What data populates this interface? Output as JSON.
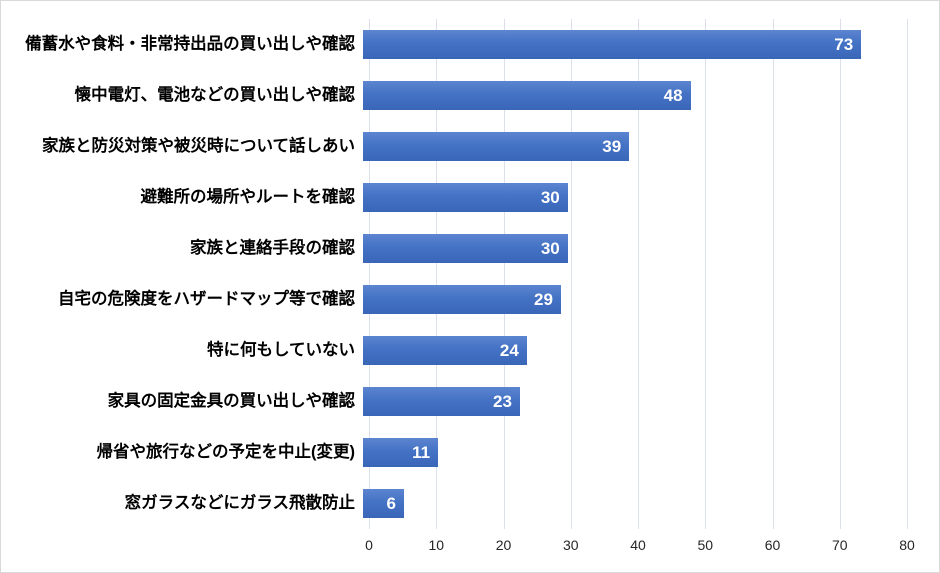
{
  "chart_data": {
    "type": "bar",
    "orientation": "horizontal",
    "title": "",
    "xlabel": "",
    "ylabel": "",
    "categories": [
      "備蓄水や食料・非常持出品の買い出しや確認",
      "懐中電灯、電池などの買い出しや確認",
      "家族と防災対策や被災時について話しあい",
      "避難所の場所やルートを確認",
      "家族と連絡手段の確認",
      "自宅の危険度をハザードマップ等で確認",
      "特に何もしていない",
      "家具の固定金具の買い出しや確認",
      "帰省や旅行などの予定を中止(変更)",
      "窓ガラスなどにガラス飛散防止"
    ],
    "values": [
      73,
      48,
      39,
      30,
      30,
      29,
      24,
      23,
      11,
      6
    ],
    "data_labels": [
      "73",
      "48",
      "39",
      "30",
      "30",
      "29",
      "24",
      "23",
      "11",
      "6"
    ],
    "data_label_position": "inside-end",
    "xlim": [
      0,
      80
    ],
    "x_ticks": [
      0,
      10,
      20,
      30,
      40,
      50,
      60,
      70,
      80
    ],
    "grid": "vertical-only",
    "legend": "none",
    "colors": {
      "bar_fill": "#4472C4",
      "bar_gradient_top": "#5C85D1",
      "bar_gradient_bottom": "#3A66B8",
      "gridline": "#DCE0E8",
      "category_label": "#000000",
      "data_label": "#FFFFFF",
      "axis_tick_label": "#262626",
      "chart_border": "#D9D9D9",
      "background": "#FFFFFF"
    }
  }
}
